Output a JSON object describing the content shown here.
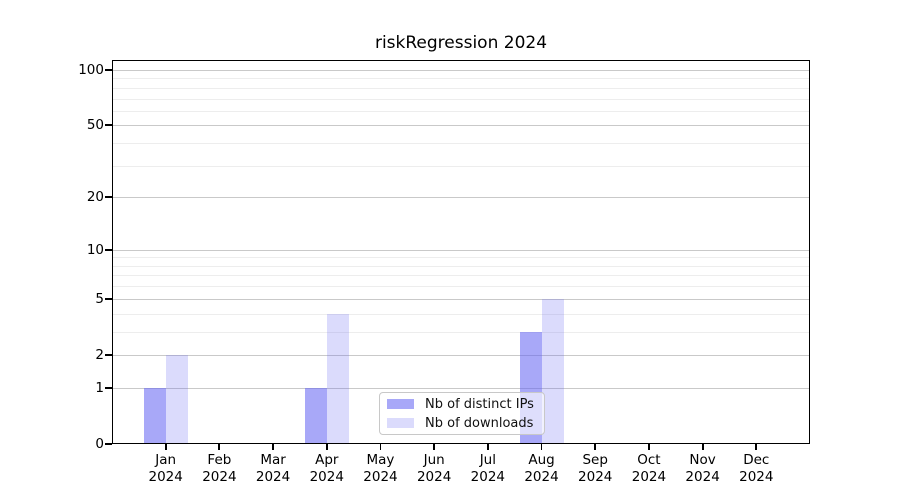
{
  "chart_data": {
    "type": "bar",
    "title": "riskRegression 2024",
    "categories": [
      "Jan",
      "Feb",
      "Mar",
      "Apr",
      "May",
      "Jun",
      "Jul",
      "Aug",
      "Sep",
      "Oct",
      "Nov",
      "Dec"
    ],
    "x_tick_year": "2024",
    "series": [
      {
        "name": "Nb of distinct IPs",
        "color": "rgba(100,100,242,0.56)",
        "values": [
          1,
          0,
          0,
          1,
          0,
          0,
          0,
          3,
          0,
          0,
          0,
          0
        ]
      },
      {
        "name": "Nb of downloads",
        "color": "rgba(100,100,242,0.23)",
        "values": [
          2,
          0,
          0,
          4,
          0,
          0,
          0,
          5,
          0,
          0,
          0,
          0
        ]
      }
    ],
    "y_axis": {
      "scale": "log1p",
      "major_ticks": [
        0,
        1,
        2,
        5,
        10,
        20,
        50,
        100
      ],
      "minor_ticks": [
        3,
        4,
        6,
        7,
        8,
        9,
        30,
        40,
        60,
        70,
        80,
        90
      ],
      "top_value": 114
    },
    "legend": {
      "position": "lower-center-inside"
    },
    "colors": {
      "grid_major": "#c9c9c9",
      "grid_minor": "#ededed",
      "axis": "#000000",
      "background": "#ffffff"
    },
    "xlabel": "",
    "ylabel": ""
  }
}
